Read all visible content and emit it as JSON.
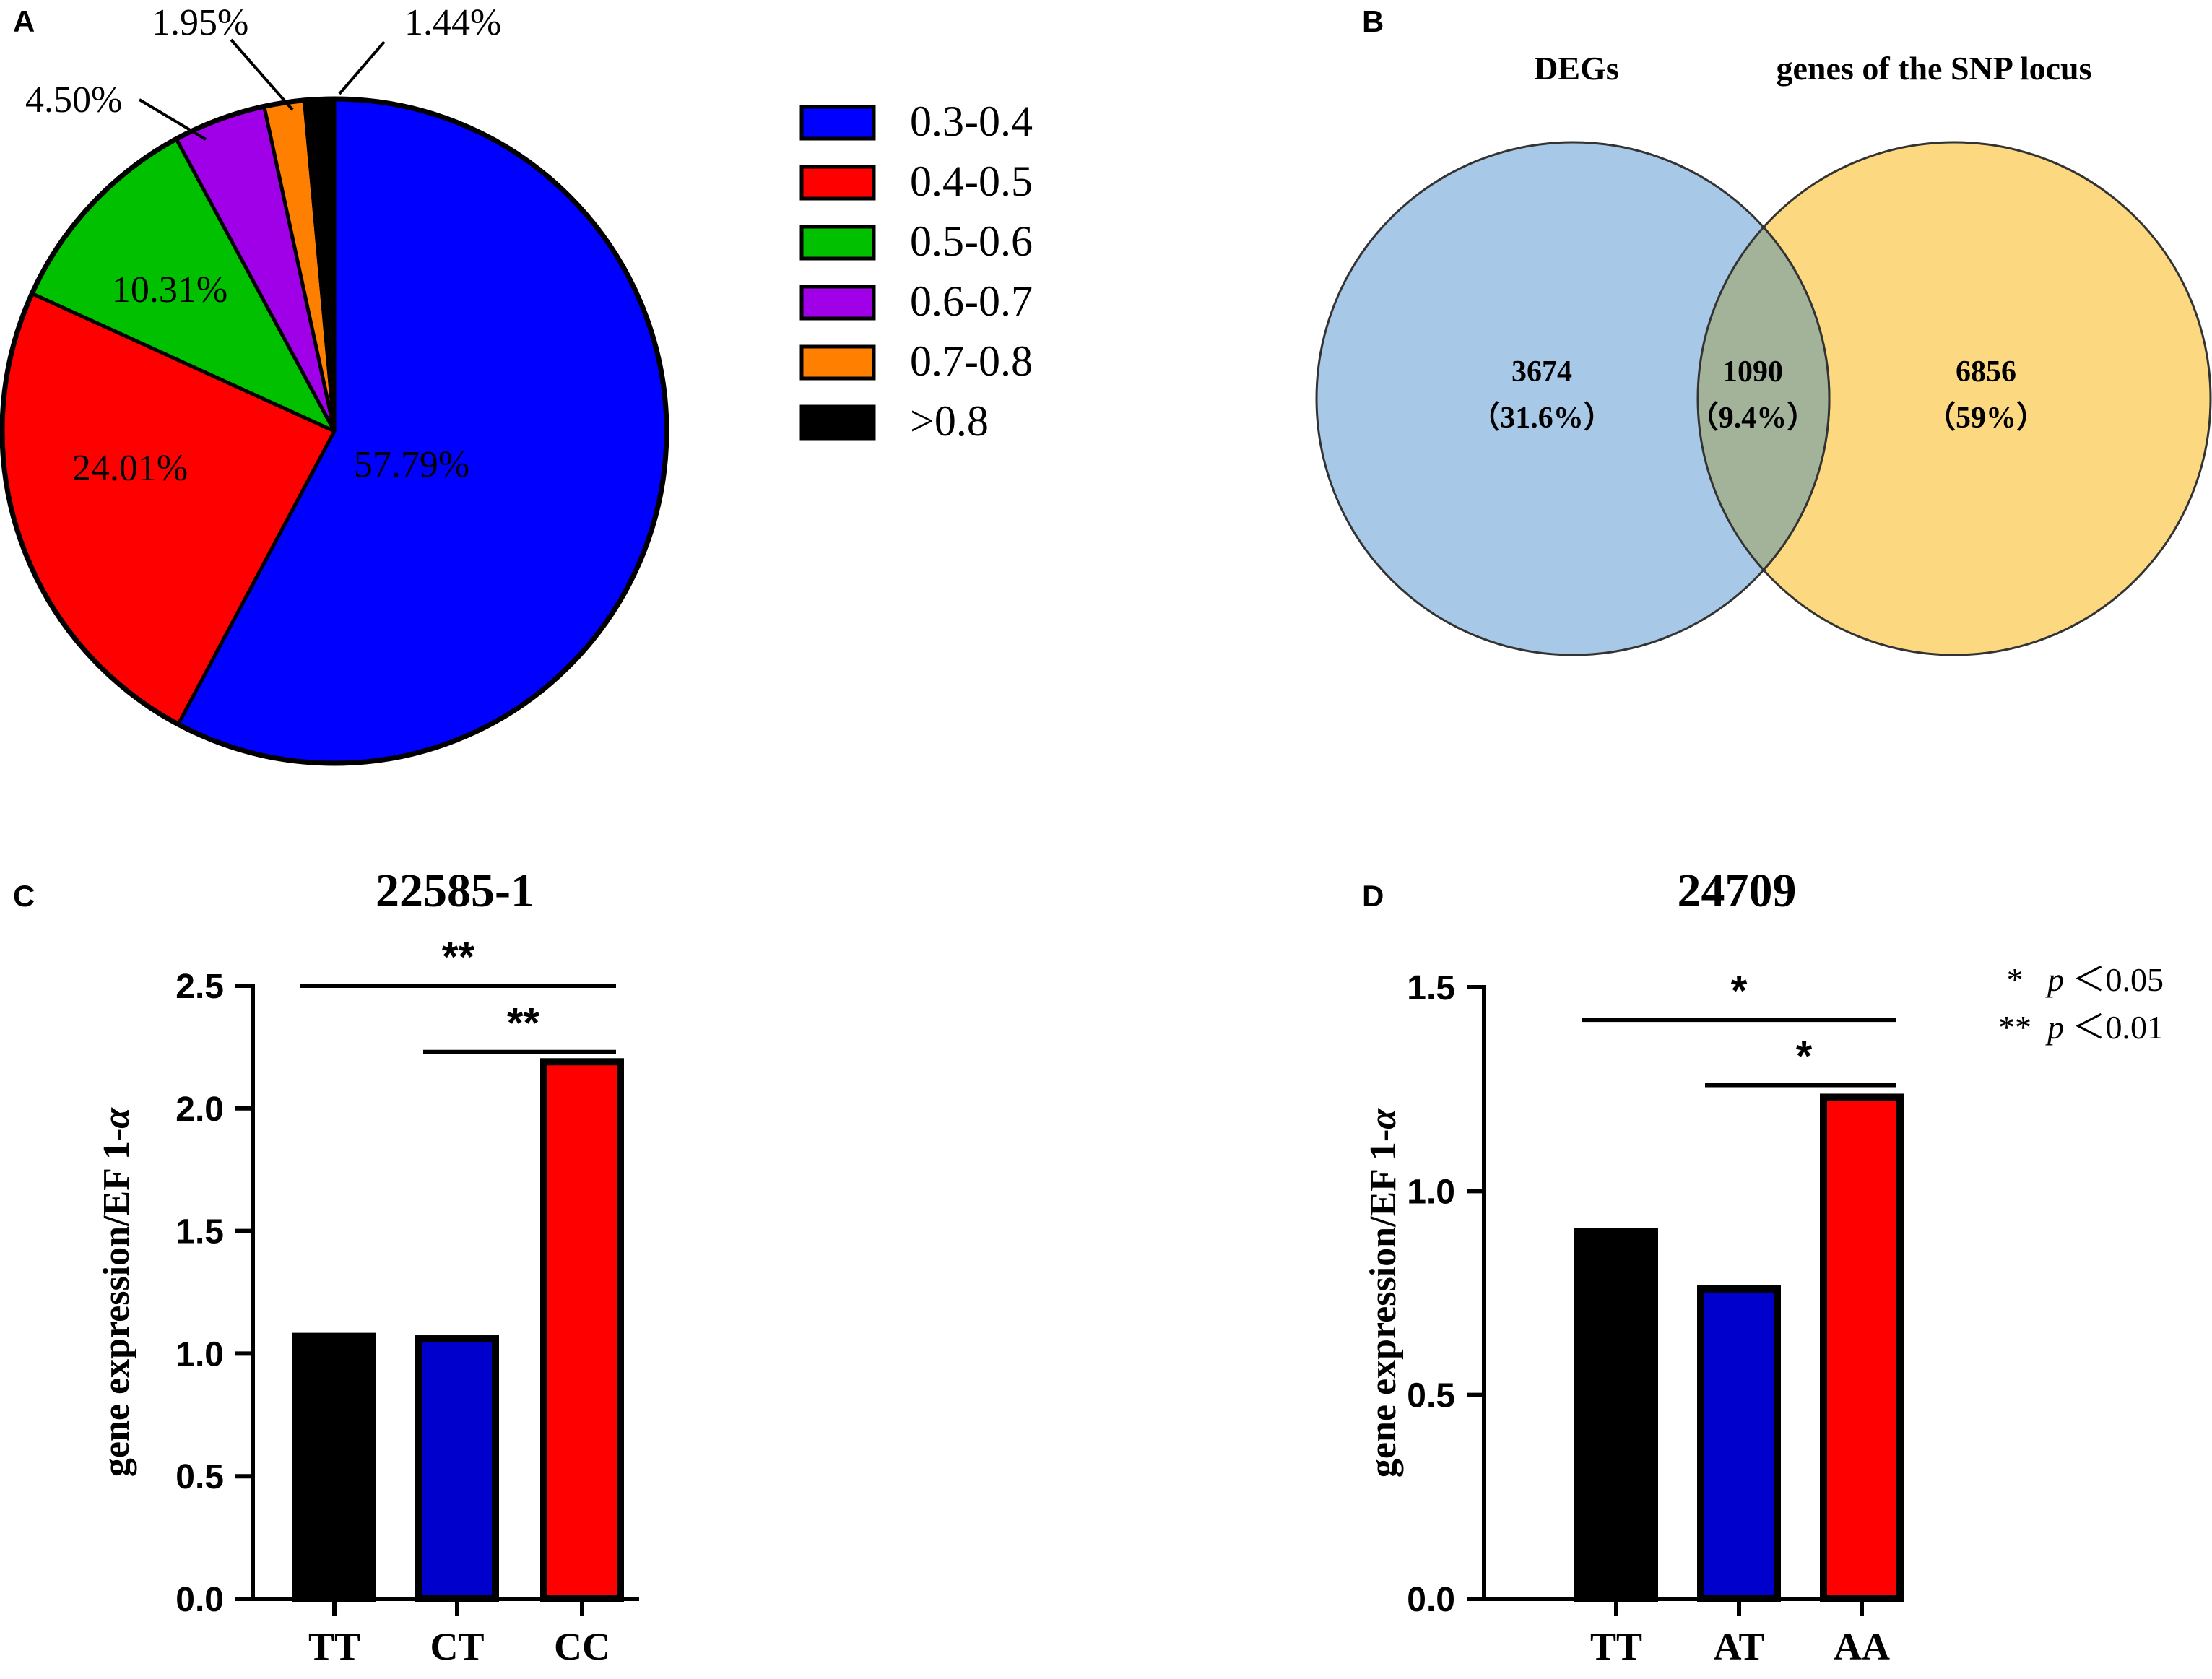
{
  "panels": {
    "a": "A",
    "b": "B",
    "c": "C",
    "d": "D"
  },
  "chart_data": [
    {
      "type": "pie",
      "panel": "A",
      "slices": [
        {
          "label": "0.3-0.4",
          "value": 57.79,
          "value_label": "57.79%",
          "color": "#0000ff"
        },
        {
          "label": "0.4-0.5",
          "value": 24.01,
          "value_label": "24.01%",
          "color": "#ff0000"
        },
        {
          "label": "0.5-0.6",
          "value": 10.31,
          "value_label": "10.31%",
          "color": "#00c000"
        },
        {
          "label": "0.6-0.7",
          "value": 4.5,
          "value_label": "4.50%",
          "color": "#a000e8"
        },
        {
          "label": "0.7-0.8",
          "value": 1.95,
          "value_label": "1.95%",
          "color": "#ff8000"
        },
        {
          "label": ">0.8",
          "value": 1.44,
          "value_label": "1.44%",
          "color": "#000000"
        }
      ],
      "legend_position": "right"
    },
    {
      "type": "venn",
      "panel": "B",
      "sets": [
        {
          "name": "DEGs",
          "only_count": "3674",
          "only_pct": "（31.6%）",
          "color": "#a8c8e8"
        },
        {
          "name": "genes of the SNP locus",
          "only_count": "6856",
          "only_pct": "（59%）",
          "color": "#fcd980"
        }
      ],
      "overlap": {
        "count": "1090",
        "pct": "（9.4%）",
        "color": "#a3b39a"
      }
    },
    {
      "type": "bar",
      "panel": "C",
      "title": "22585-1",
      "ylabel": "gene expression/EF 1-α",
      "categories": [
        "TT",
        "CT",
        "CC"
      ],
      "values": [
        1.07,
        1.06,
        2.19
      ],
      "colors": [
        "#000000",
        "#0000cc",
        "#ff0000"
      ],
      "ylim": [
        0,
        2.5
      ],
      "yticks": [
        0.0,
        0.5,
        1.0,
        1.5,
        2.0,
        2.5
      ],
      "ytick_labels": [
        "0.0",
        "0.5",
        "1.0",
        "1.5",
        "2.0",
        "2.5"
      ],
      "significance": [
        {
          "from": 0,
          "to": 2,
          "y": 2.5,
          "label": "**"
        },
        {
          "from": 1,
          "to": 2,
          "y": 2.23,
          "label": "**"
        }
      ]
    },
    {
      "type": "bar",
      "panel": "D",
      "title": "24709",
      "ylabel": "gene expression/EF 1-α",
      "categories": [
        "TT",
        "AT",
        "AA"
      ],
      "values": [
        0.9,
        0.76,
        1.23
      ],
      "colors": [
        "#000000",
        "#0000cc",
        "#ff0000"
      ],
      "ylim": [
        0,
        1.5
      ],
      "yticks": [
        0.0,
        0.5,
        1.0,
        1.5
      ],
      "ytick_labels": [
        "0.0",
        "0.5",
        "1.0",
        "1.5"
      ],
      "significance": [
        {
          "from": 0,
          "to": 2,
          "y": 1.42,
          "label": "*"
        },
        {
          "from": 1,
          "to": 2,
          "y": 1.26,
          "label": "*"
        }
      ],
      "annotation": [
        {
          "stars": "*",
          "text": "p ＜0.05"
        },
        {
          "stars": "**",
          "text": "p ＜0.01"
        }
      ]
    }
  ]
}
